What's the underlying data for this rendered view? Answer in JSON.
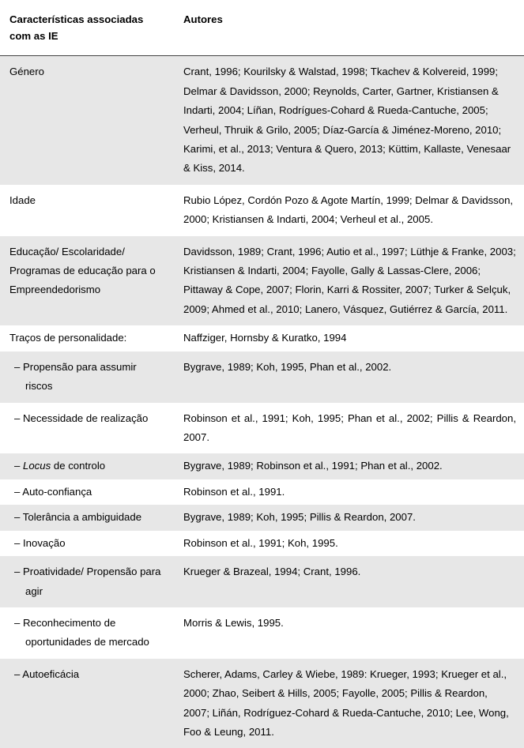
{
  "header": {
    "col1": "Características associadas com as IE",
    "col2": "Autores"
  },
  "rows": [
    {
      "shade": true,
      "c1": "Género",
      "c2": "Crant, 1996; Kourilsky & Walstad, 1998; Tkachev & Kolvereid, 1999; Delmar & Davidsson, 2000; Reynolds, Carter, Gartner, Kristiansen & Indarti, 2004; Líñan, Rodrígues-Cohard & Rueda-Cantuche, 2005; Verheul, Thruik & Grilo, 2005; Díaz-García & Jiménez-Moreno, 2010; Karimi, et al., 2013; Ventura & Quero, 2013; Küttim, Kallaste, Venesaar & Kiss, 2014."
    },
    {
      "shade": false,
      "c1": "Idade",
      "c2": "Rubio López, Cordón Pozo & Agote Martín, 1999; Delmar & Davidsson, 2000; Kristiansen & Indarti, 2004; Verheul et al., 2005."
    },
    {
      "shade": true,
      "c1": "Educação/ Escolaridade/ Programas de educação para o Empreendedorismo",
      "c2": "Davidsson, 1989; Crant, 1996; Autio et al., 1997; Lüthje & Franke, 2003; Kristiansen & Indarti, 2004; Fayolle, Gally & Lassas-Clere, 2006; Pittaway & Cope, 2007; Florin, Karri & Rossiter, 2007; Turker & Selçuk, 2009; Ahmed et al., 2010; Lanero, Vásquez, Gutiérrez & García, 2011."
    },
    {
      "shade": false,
      "c1": "Traços de personalidade:",
      "c2": "Naffziger, Hornsby & Kuratko, 1994"
    }
  ],
  "traits": [
    {
      "shade": true,
      "label": "Propensão para assumir riscos",
      "authors": "Bygrave, 1989; Koh, 1995, Phan et al., 2002."
    },
    {
      "shade": false,
      "label": "Necessidade de realização",
      "authors": "Robinson et al., 1991; Koh, 1995; Phan et al., 2002; Pillis & Reardon, 2007.",
      "justify": true
    },
    {
      "shade": true,
      "label_html": "locus_controlo",
      "label_pre": "",
      "label_italic": "Locus",
      "label_post": " de controlo",
      "authors": "Bygrave, 1989; Robinson et al., 1991; Phan et al., 2002."
    },
    {
      "shade": false,
      "label": "Auto-confiança",
      "authors": "Robinson et al., 1991."
    },
    {
      "shade": true,
      "label": "Tolerância a ambiguidade",
      "authors": "Bygrave, 1989; Koh, 1995; Pillis & Reardon, 2007."
    },
    {
      "shade": false,
      "label": "Inovação",
      "authors": "Robinson et al., 1991; Koh, 1995."
    },
    {
      "shade": true,
      "label": "Proatividade/ Propensão para agir",
      "authors": "Krueger & Brazeal, 1994; Crant, 1996."
    },
    {
      "shade": false,
      "label": "Reconhecimento de oportunidades de mercado",
      "authors": "Morris & Lewis, 1995."
    },
    {
      "shade": true,
      "label": "Autoeficácia",
      "authors": "Scherer, Adams, Carley & Wiebe, 1989: Krueger, 1993; Krueger et al., 2000; Zhao, Seibert & Hills, 2005; Fayolle, 2005; Pillis & Reardon, 2007; Liñán, Rodríguez-Cohard & Rueda-Cantuche, 2010; Lee, Wong, Foo & Leung, 2011."
    }
  ],
  "colors": {
    "shade": "#e7e7e7",
    "border": "#444444",
    "text": "#000000",
    "bg": "#ffffff"
  }
}
